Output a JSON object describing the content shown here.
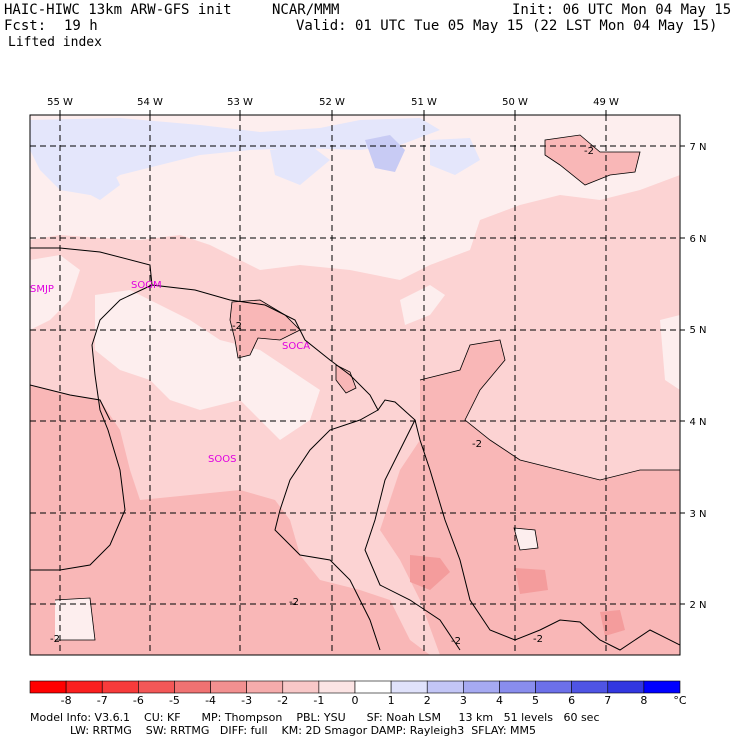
{
  "header": {
    "title": "HAIC-HIWC 13km ARW-GFS init",
    "center": "NCAR/MMM",
    "init": "Init: 06 UTC Mon 04 May 15",
    "fcst_label": "Fcst:",
    "fcst_value": "19 h",
    "valid": "Valid: 01 UTC Tue 05 May 15 (22 LST Mon 04 May 15)",
    "field": "Lifted index"
  },
  "map": {
    "lon_labels": [
      "55 W",
      "54 W",
      "53 W",
      "52 W",
      "51 W",
      "50 W",
      "49 W"
    ],
    "lat_labels": [
      "7 N",
      "6 N",
      "5 N",
      "4 N",
      "3 N",
      "2 N"
    ],
    "stations": [
      "SMJP",
      "SOGM",
      "SOCA",
      "SOOS"
    ],
    "contour_label": "-2",
    "colors": {
      "pale_blue": "#e4e6fb",
      "light_blue": "#c8cbf4",
      "very_light_pink": "#fdeeee",
      "light_pink": "#fcd3d3",
      "pink": "#f9b7b7",
      "salmon": "#f49c9c"
    }
  },
  "colorbar": {
    "labels": [
      "-8",
      "-7",
      "-6",
      "-5",
      "-4",
      "-3",
      "-2",
      "-1",
      "0",
      "1",
      "2",
      "3",
      "4",
      "5",
      "6",
      "7",
      "8"
    ],
    "unit": "°C",
    "colors": [
      "#ff0000",
      "#fb1f1f",
      "#f73b3b",
      "#f35757",
      "#f07272",
      "#f29090",
      "#f5acac",
      "#f8c8c8",
      "#fce4e4",
      "#ffffff",
      "#e0e2fb",
      "#c3c6f6",
      "#a6aaf2",
      "#898ded",
      "#6c70e9",
      "#4f54e4",
      "#3237e0",
      "#0000ff"
    ]
  },
  "footer": {
    "line1": "Model Info: V3.6.1    CU: KF      MP: Thompson    PBL: YSU      SF: Noah LSM     13 km   51 levels   60 sec",
    "line2": "LW: RRTMG    SW: RRTMG   DIFF: full    KM: 2D Smagor DAMP: Rayleigh3  SFLAY: MM5"
  }
}
